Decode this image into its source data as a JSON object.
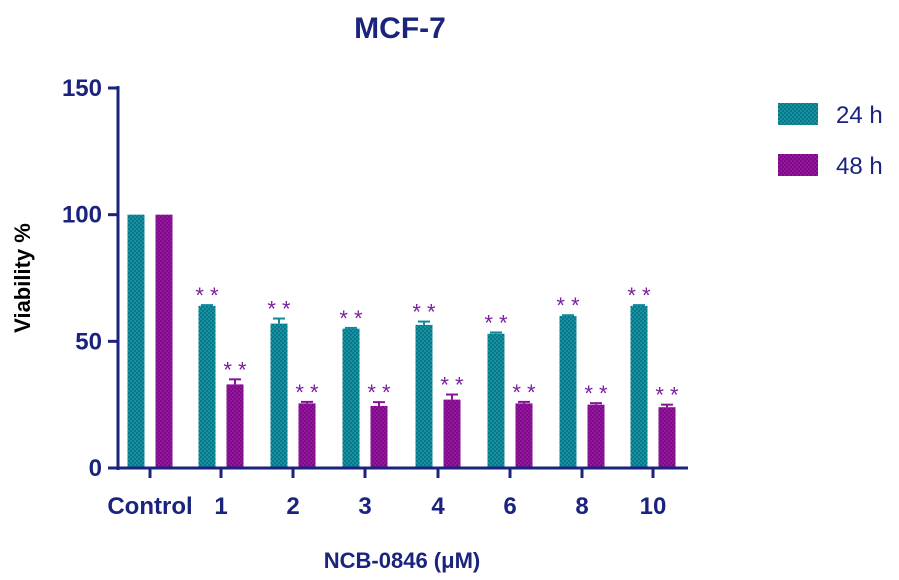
{
  "chart_data": {
    "type": "bar",
    "title": "MCF-7",
    "xlabel": "NCB-0846 (μM)",
    "ylabel": "Viability %",
    "ylim": [
      0,
      150
    ],
    "yticks": [
      0,
      50,
      100,
      150
    ],
    "categories": [
      "Control",
      "1",
      "2",
      "3",
      "4",
      "6",
      "8",
      "10"
    ],
    "series": [
      {
        "name": "24 h",
        "color": "#0f8a9c",
        "values": [
          100,
          64,
          57,
          55,
          56.5,
          53,
          60,
          64
        ],
        "errors": [
          0,
          0.3,
          2,
          0.3,
          1.3,
          0.5,
          0.3,
          0.3
        ],
        "significance": [
          "",
          "**",
          "**",
          "**",
          "**",
          "**",
          "**",
          "**"
        ]
      },
      {
        "name": "48 h",
        "color": "#8c0f9c",
        "values": [
          100,
          33,
          25.5,
          24.5,
          27,
          25.5,
          25,
          24
        ],
        "errors": [
          0,
          2,
          0.6,
          1.5,
          2,
          0.6,
          0.6,
          1
        ],
        "significance": [
          "",
          "**",
          "**",
          "**",
          "**",
          "**",
          "**",
          "**"
        ]
      }
    ],
    "legend_position": "top-right",
    "significance_color": "#7a1f9e",
    "axis_color": "#1a237e",
    "grid": false
  }
}
